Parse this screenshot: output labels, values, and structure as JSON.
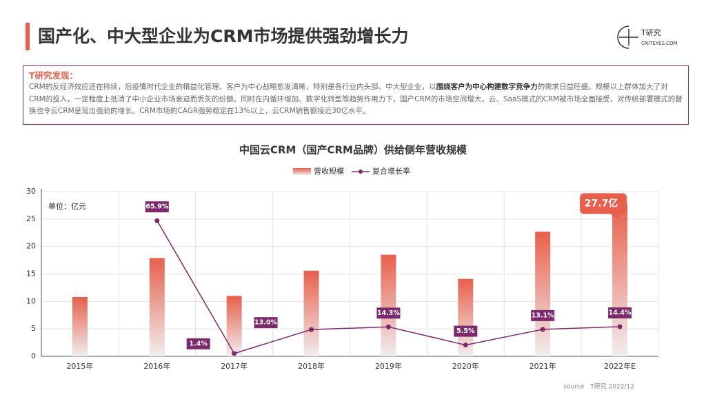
{
  "header": {
    "title": "国产化、中大型企业为CRM市场提供强劲增长力",
    "logo_name": "T研究",
    "logo_site": "CNITEYES.COM"
  },
  "finding": {
    "heading": "T研究发现：",
    "text_before": "CRM的反经济效应还在持续，后疫情时代企业的精益化管理、客户为中心战略愈发清晰，特别是各行业内头部、中大型企业，以",
    "text_bold": "围绕客户为中心构建数字竞争力",
    "text_after": "的需求日益旺盛。规模以上群体加大了对CRM的投入，一定程度上抵消了中小企业市场衰退而丢失的份额。同时在内循环增加、数字化转型等趋势作用力下，国产CRM的市场空间增大，云、SaaS模式的CRM被市场全面接受，对传统部署模式的替换也令云CRM呈现出强劲的增长。CRM市场的CAGR强势稳定在13%以上，云CRM销售额接近30亿水平。"
  },
  "chart_data": {
    "type": "bar",
    "title": "中国云CRM（国产CRM品牌）供给侧年营收规模",
    "unit": "单位：亿元",
    "categories": [
      "2015年",
      "2016年",
      "2017年",
      "2018年",
      "2019年",
      "2020年",
      "2021年",
      "2022年E"
    ],
    "series": [
      {
        "name": "营收规模",
        "type": "bar",
        "color": "#e8604c",
        "values": [
          10.8,
          17.9,
          11.0,
          15.6,
          18.5,
          14.1,
          22.7,
          27.7
        ],
        "value_labels": [
          null,
          null,
          null,
          null,
          null,
          null,
          null,
          "27.7亿"
        ]
      },
      {
        "name": "复合增长率",
        "type": "line",
        "axis": "y2",
        "color": "#7b2a6b",
        "values": [
          null,
          65.9,
          1.4,
          13.0,
          14.3,
          5.5,
          13.1,
          14.4
        ],
        "value_labels": [
          null,
          "65.9%",
          "1.4%",
          "13.0%",
          "14.3%",
          "5.5%",
          "13.1%",
          "14.4%"
        ]
      }
    ],
    "ylim": [
      0,
      30
    ],
    "yticks": [
      0,
      5,
      10,
      15,
      20,
      25,
      30
    ],
    "y2lim": [
      0,
      80
    ],
    "grid": true
  },
  "source": "source　T研究 2022/12"
}
